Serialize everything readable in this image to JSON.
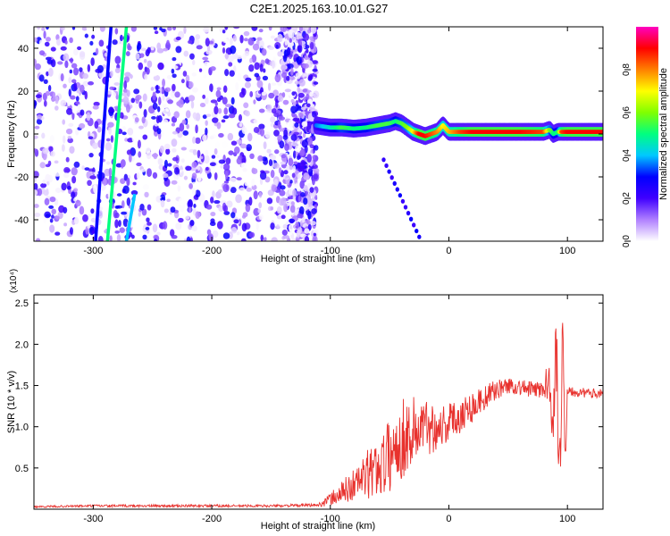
{
  "title": "C2E1.2025.163.10.01.G27",
  "chart_data": [
    {
      "type": "heatmap",
      "xlabel": "Height of straight line (km)",
      "ylabel": "Frequency (Hz)",
      "xlim": [
        -350,
        130
      ],
      "ylim": [
        -50,
        50
      ],
      "x_ticks": [
        -300,
        -200,
        -100,
        0,
        100
      ],
      "y_ticks": [
        -40,
        -20,
        0,
        20,
        40
      ],
      "colorbar": {
        "label": "Normalized spectral amplitude",
        "range": [
          0,
          1
        ],
        "ticks": [
          "0.0",
          "0.2",
          "0.4",
          "0.6",
          "0.8"
        ],
        "colors": [
          "#ffffff",
          "#b080ff",
          "#4000ff",
          "#0000ff",
          "#00c8ff",
          "#00ff80",
          "#80ff00",
          "#ffff00",
          "#ff8000",
          "#ff0000",
          "#ff00c0"
        ]
      },
      "noise_region_x": [
        -350,
        -112
      ],
      "signal_track": {
        "x": [
          -112,
          -100,
          -90,
          -80,
          -70,
          -60,
          -50,
          -45,
          -40,
          -35,
          -30,
          -25,
          -20,
          -15,
          -10,
          -5,
          0,
          5,
          10,
          20,
          40,
          60,
          80,
          85,
          88,
          92,
          95,
          100,
          110,
          120,
          130
        ],
        "freq": [
          4,
          3,
          3,
          2.5,
          3,
          4,
          5,
          6,
          5,
          3,
          1,
          0,
          -1,
          0,
          1,
          4,
          1,
          1,
          1,
          1,
          1,
          1,
          1,
          2,
          0,
          1,
          1,
          1,
          1,
          1,
          1
        ],
        "amplitude": [
          0.35,
          0.45,
          0.55,
          0.5,
          0.5,
          0.55,
          0.55,
          0.5,
          0.55,
          0.6,
          0.7,
          0.9,
          0.9,
          0.85,
          0.8,
          0.7,
          0.75,
          0.8,
          0.85,
          0.9,
          0.9,
          0.9,
          0.85,
          0.6,
          0.5,
          0.5,
          0.85,
          0.9,
          0.9,
          0.9,
          0.9
        ]
      },
      "descending_branch": {
        "x": [
          -55,
          -25
        ],
        "freq": [
          -12,
          -48
        ]
      },
      "slanted_streaks": [
        {
          "x": [
            -298,
            -285
          ],
          "freq": [
            -50,
            50
          ],
          "amplitude": 0.3
        },
        {
          "x": [
            -288,
            -272
          ],
          "freq": [
            -50,
            50
          ],
          "amplitude": 0.5
        },
        {
          "x": [
            -272,
            -265
          ],
          "freq": [
            -50,
            -28
          ],
          "amplitude": 0.4
        }
      ]
    },
    {
      "type": "line",
      "xlabel": "Height of straight line (km)",
      "ylabel": "SNR (10 * v/v)",
      "y_multiplier": "(x10⁴)",
      "xlim": [
        -350,
        130
      ],
      "ylim": [
        0,
        2.6
      ],
      "x_ticks": [
        -300,
        -200,
        -100,
        0,
        100
      ],
      "y_ticks": [
        0.5,
        1.0,
        1.5,
        2.0,
        2.5
      ],
      "color": "#e8322e",
      "x": [
        -350,
        -300,
        -250,
        -200,
        -150,
        -110,
        -100,
        -90,
        -80,
        -70,
        -60,
        -50,
        -40,
        -30,
        -20,
        -10,
        0,
        10,
        20,
        30,
        40,
        50,
        60,
        70,
        80,
        85,
        88,
        90,
        92,
        94,
        96,
        98,
        100,
        110,
        120,
        130
      ],
      "y": [
        0.03,
        0.04,
        0.04,
        0.04,
        0.04,
        0.05,
        0.12,
        0.2,
        0.3,
        0.4,
        0.5,
        0.65,
        0.85,
        0.95,
        1.0,
        1.0,
        1.05,
        1.15,
        1.25,
        1.35,
        1.45,
        1.5,
        1.48,
        1.45,
        1.45,
        1.6,
        1.1,
        2.0,
        1.2,
        0.3,
        2.6,
        0.6,
        1.45,
        1.42,
        1.4,
        1.42
      ],
      "noise_amplitude": [
        0.01,
        0.015,
        0.015,
        0.015,
        0.015,
        0.02,
        0.08,
        0.15,
        0.2,
        0.3,
        0.35,
        0.45,
        0.5,
        0.45,
        0.35,
        0.3,
        0.25,
        0.22,
        0.2,
        0.15,
        0.12,
        0.1,
        0.1,
        0.1,
        0.12,
        0.3,
        0.5,
        0.6,
        0.6,
        0.5,
        0.4,
        0.3,
        0.08,
        0.06,
        0.06,
        0.06
      ]
    }
  ]
}
